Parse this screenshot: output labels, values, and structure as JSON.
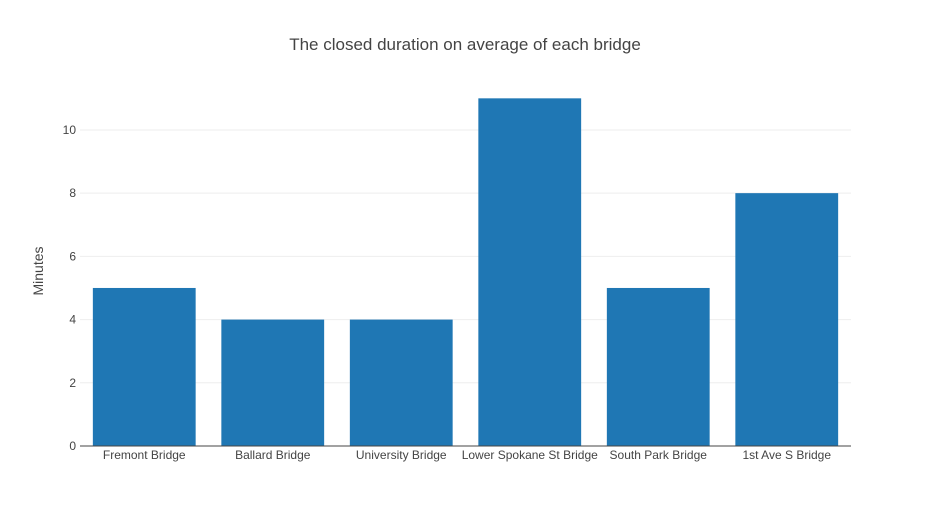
{
  "chart_data": {
    "type": "bar",
    "title": "The closed duration on average of each bridge",
    "xlabel": "",
    "ylabel": "Minutes",
    "categories": [
      "Fremont Bridge",
      "Ballard Bridge",
      "University Bridge",
      "Lower Spokane St Bridge",
      "South Park Bridge",
      "1st Ave S Bridge"
    ],
    "values": [
      5,
      4,
      4,
      11,
      5,
      8
    ],
    "ylim": [
      0,
      11.58
    ],
    "yticks": [
      0,
      2,
      4,
      6,
      8,
      10
    ],
    "grid": true,
    "legend": "none",
    "bar_color": "#1f77b4",
    "grid_color": "#eeeeee",
    "axis_color": "#444444"
  }
}
